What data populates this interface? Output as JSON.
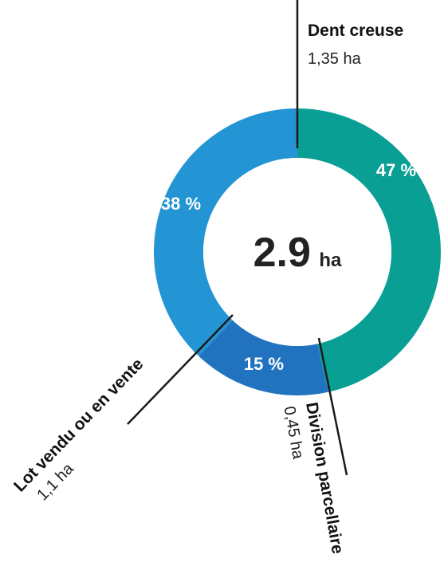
{
  "chart_data": {
    "type": "pie",
    "variant": "donut",
    "total": {
      "value": "2.9",
      "unit": "ha"
    },
    "slices": [
      {
        "name": "Dent creuse",
        "value_label": "1,35 ha",
        "value": 1.35,
        "percent": 47,
        "percent_label": "47 %",
        "color": "#0a9f94"
      },
      {
        "name": "Division parcellaire",
        "value_label": "0,45 ha",
        "value": 0.45,
        "percent": 15,
        "percent_label": "15 %",
        "color": "#2173c0"
      },
      {
        "name": "Lot vendu ou en vente",
        "value_label": "1,1 ha",
        "value": 1.1,
        "percent": 38,
        "percent_label": "38 %",
        "color": "#2394d4"
      }
    ]
  }
}
